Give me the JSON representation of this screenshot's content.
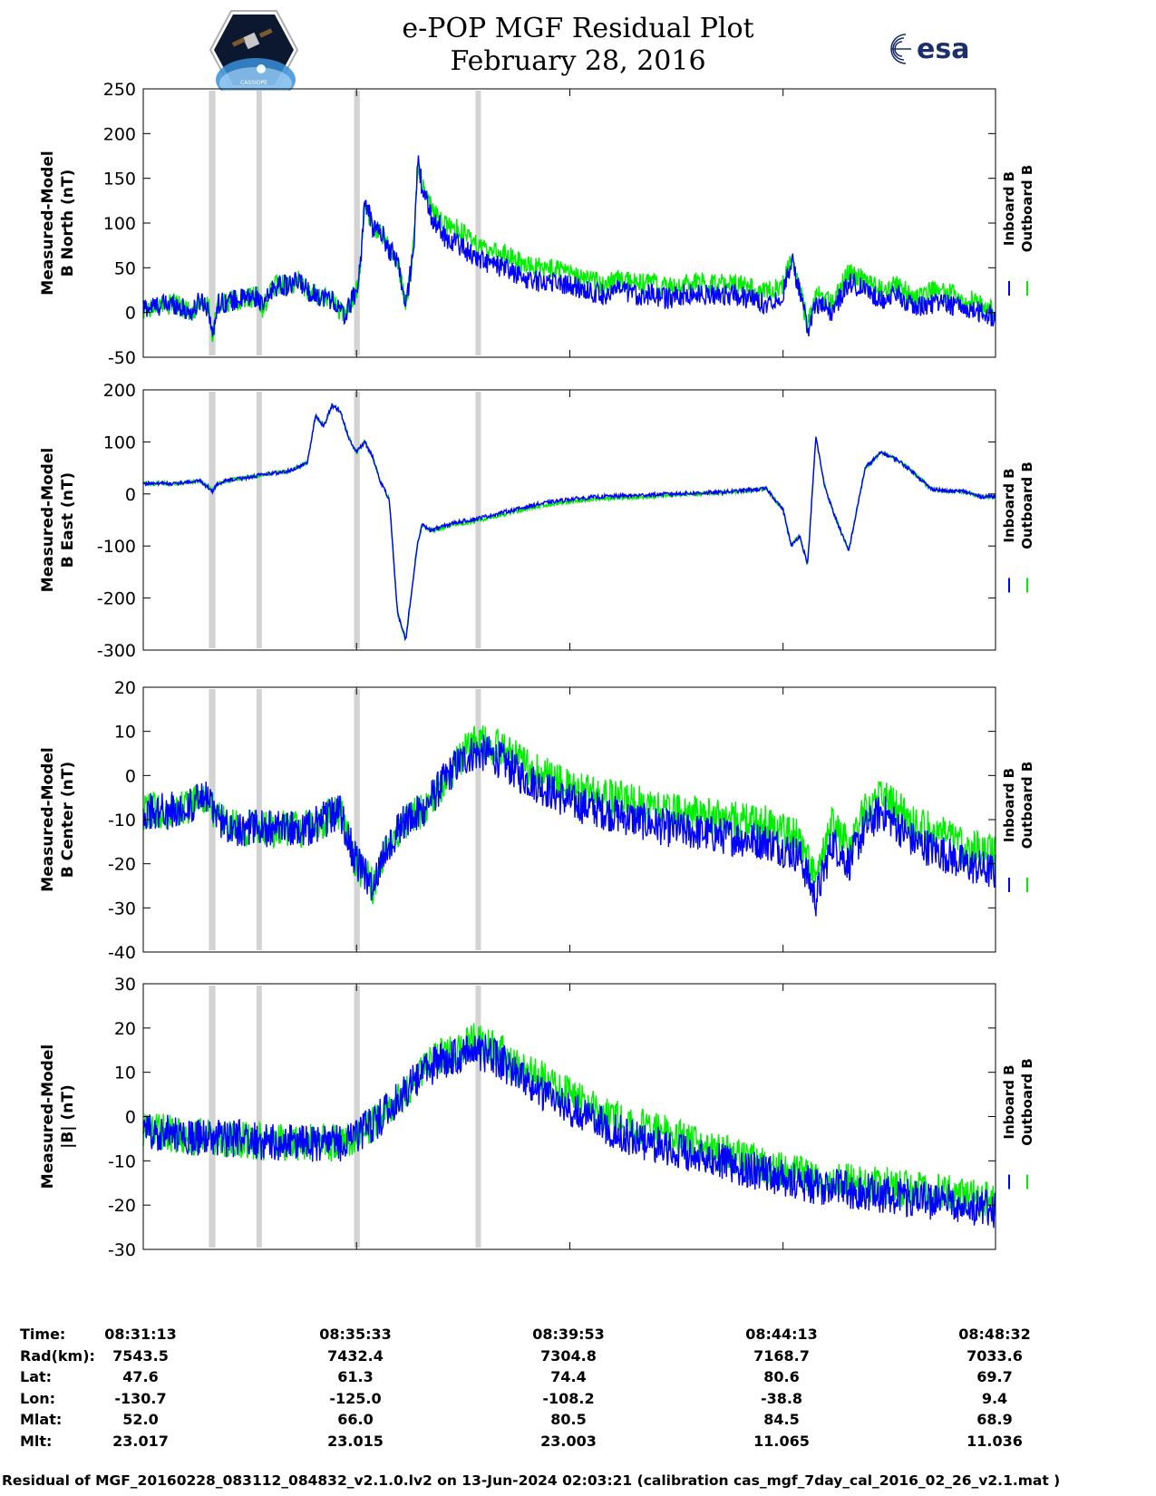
{
  "page": {
    "title": "e-POP MGF Residual Plot",
    "date": "February 28, 2016",
    "footer": "Residual of MGF_20160228_083112_084832_v2.1.0.lv2 on 13-Jun-2024 02:03:21 (calibration cas_mgf_7day_cal_2016_02_26_v2.1.mat )",
    "logos": [
      {
        "name": "cassiope-mission-logo",
        "text": "CASSIOPE"
      },
      {
        "name": "esa-logo",
        "text": "esa"
      }
    ]
  },
  "colors": {
    "inboard": "#0000ff",
    "outboard": "#00ee00",
    "gap_shading": "#d3d3d3",
    "axes": "#000000"
  },
  "orbit_table": {
    "labels": [
      "Time:",
      "Rad(km):",
      "Lat:",
      "Lon:",
      "Mlat:",
      "Mlt:"
    ],
    "columns": [
      [
        "08:31:13",
        "7543.5",
        "47.6",
        "-130.7",
        "52.0",
        "23.017"
      ],
      [
        "08:35:33",
        "7432.4",
        "61.3",
        "-125.0",
        "66.0",
        "23.015"
      ],
      [
        "08:39:53",
        "7304.8",
        "74.4",
        "-108.2",
        "80.5",
        "23.003"
      ],
      [
        "08:44:13",
        "7168.7",
        "80.6",
        "-38.8",
        "84.5",
        "11.065"
      ],
      [
        "08:48:32",
        "7033.6",
        "69.7",
        "9.4",
        "68.9",
        "11.036"
      ]
    ]
  },
  "chart_data": [
    {
      "type": "line",
      "ylabel": [
        "Measured-Model",
        "B North (nT)"
      ],
      "ylim": [
        -50,
        250
      ],
      "yticks": [
        -50,
        0,
        50,
        100,
        150,
        200,
        250
      ],
      "x_range_s": [
        0,
        1039
      ],
      "gaps_s": [
        [
          80,
          88
        ],
        [
          138,
          144
        ],
        [
          257,
          264
        ],
        [
          405,
          411
        ]
      ],
      "legend": [
        "Inboard B",
        "Outboard B"
      ],
      "series": [
        {
          "name": "Inboard B",
          "x": [
            0,
            20,
            40,
            50,
            60,
            70,
            80,
            85,
            90,
            100,
            120,
            140,
            145,
            160,
            180,
            190,
            200,
            210,
            230,
            245,
            250,
            262,
            265,
            270,
            275,
            280,
            290,
            300,
            310,
            320,
            325,
            330,
            335,
            340,
            350,
            355,
            360,
            365,
            370,
            380,
            400,
            420,
            440,
            460,
            480,
            500,
            520,
            540,
            560,
            580,
            600,
            620,
            640,
            660,
            680,
            700,
            720,
            740,
            760,
            780,
            790,
            800,
            810,
            820,
            840,
            860,
            880,
            900,
            920,
            940,
            960,
            980,
            1000,
            1020,
            1039
          ],
          "y": [
            5,
            8,
            10,
            3,
            0,
            15,
            5,
            -30,
            10,
            12,
            15,
            18,
            5,
            30,
            30,
            35,
            25,
            20,
            15,
            -5,
            5,
            30,
            60,
            125,
            110,
            95,
            90,
            70,
            60,
            5,
            40,
            80,
            170,
            140,
            110,
            100,
            100,
            90,
            80,
            80,
            65,
            55,
            50,
            40,
            35,
            35,
            30,
            25,
            20,
            25,
            20,
            20,
            15,
            20,
            20,
            20,
            20,
            15,
            10,
            20,
            60,
            25,
            -20,
            10,
            0,
            35,
            25,
            15,
            20,
            5,
            10,
            10,
            5,
            0,
            -5
          ]
        },
        {
          "name": "Outboard B",
          "x": [
            0,
            20,
            40,
            50,
            60,
            70,
            80,
            85,
            90,
            100,
            120,
            140,
            145,
            160,
            180,
            190,
            200,
            210,
            230,
            245,
            250,
            262,
            265,
            270,
            275,
            280,
            290,
            300,
            310,
            320,
            325,
            330,
            335,
            340,
            350,
            355,
            360,
            365,
            370,
            380,
            400,
            420,
            440,
            460,
            480,
            500,
            520,
            540,
            560,
            580,
            600,
            620,
            640,
            660,
            680,
            700,
            720,
            740,
            760,
            780,
            790,
            800,
            810,
            820,
            840,
            860,
            880,
            900,
            920,
            940,
            960,
            980,
            1000,
            1020,
            1039
          ],
          "y": [
            5,
            8,
            10,
            3,
            0,
            15,
            5,
            -30,
            10,
            12,
            15,
            18,
            5,
            30,
            30,
            35,
            25,
            20,
            15,
            -5,
            5,
            30,
            60,
            125,
            110,
            95,
            90,
            70,
            60,
            5,
            40,
            80,
            170,
            145,
            120,
            112,
            110,
            102,
            95,
            95,
            80,
            70,
            66,
            55,
            50,
            48,
            42,
            38,
            32,
            36,
            32,
            32,
            27,
            32,
            33,
            32,
            32,
            27,
            22,
            32,
            65,
            30,
            -15,
            20,
            10,
            45,
            35,
            25,
            30,
            15,
            25,
            22,
            15,
            10,
            0
          ]
        }
      ]
    },
    {
      "type": "line",
      "ylabel": [
        "Measured-Model",
        "B East (nT)"
      ],
      "ylim": [
        -300,
        200
      ],
      "yticks": [
        -300,
        -200,
        -100,
        0,
        100,
        200
      ],
      "x_range_s": [
        0,
        1039
      ],
      "gaps_s": [
        [
          80,
          88
        ],
        [
          138,
          144
        ],
        [
          257,
          264
        ],
        [
          405,
          411
        ]
      ],
      "legend": [
        "Inboard B",
        "Outboard B"
      ],
      "series": [
        {
          "name": "Inboard B",
          "x": [
            0,
            40,
            70,
            85,
            90,
            100,
            140,
            180,
            200,
            210,
            220,
            230,
            240,
            250,
            260,
            270,
            280,
            290,
            300,
            310,
            320,
            330,
            335,
            340,
            350,
            360,
            380,
            400,
            440,
            480,
            520,
            560,
            600,
            640,
            680,
            700,
            720,
            760,
            780,
            790,
            800,
            810,
            820,
            830,
            840,
            860,
            880,
            900,
            920,
            940,
            960,
            980,
            1000,
            1020,
            1039
          ],
          "y": [
            20,
            20,
            25,
            5,
            20,
            25,
            35,
            45,
            60,
            150,
            130,
            170,
            160,
            110,
            80,
            100,
            70,
            20,
            -10,
            -230,
            -280,
            -150,
            -90,
            -60,
            -70,
            -65,
            -55,
            -50,
            -35,
            -20,
            -10,
            -5,
            -3,
            0,
            2,
            3,
            5,
            10,
            -30,
            -100,
            -80,
            -135,
            110,
            20,
            -30,
            -110,
            50,
            80,
            65,
            40,
            10,
            5,
            5,
            -5,
            -5
          ]
        },
        {
          "name": "Outboard B",
          "x": [
            0,
            40,
            70,
            85,
            90,
            100,
            140,
            180,
            200,
            210,
            220,
            230,
            240,
            250,
            260,
            270,
            280,
            290,
            300,
            310,
            320,
            330,
            335,
            340,
            350,
            360,
            380,
            400,
            440,
            480,
            520,
            560,
            600,
            640,
            680,
            700,
            720,
            760,
            780,
            790,
            800,
            810,
            820,
            830,
            840,
            860,
            880,
            900,
            920,
            940,
            960,
            980,
            1000,
            1020,
            1039
          ],
          "y": [
            20,
            20,
            25,
            5,
            20,
            25,
            35,
            45,
            60,
            150,
            130,
            170,
            160,
            110,
            80,
            100,
            70,
            20,
            -10,
            -230,
            -280,
            -150,
            -90,
            -60,
            -70,
            -68,
            -58,
            -54,
            -39,
            -24,
            -14,
            -9,
            -7,
            -3,
            0,
            2,
            4,
            10,
            -30,
            -100,
            -80,
            -135,
            110,
            20,
            -30,
            -110,
            50,
            80,
            65,
            40,
            10,
            5,
            5,
            -5,
            -5
          ]
        }
      ]
    },
    {
      "type": "line",
      "ylabel": [
        "Measured-Model",
        "B Center (nT)"
      ],
      "ylim": [
        -40,
        20
      ],
      "yticks": [
        -40,
        -30,
        -20,
        -10,
        0,
        10,
        20
      ],
      "x_range_s": [
        0,
        1039
      ],
      "gaps_s": [
        [
          80,
          88
        ],
        [
          138,
          144
        ],
        [
          257,
          264
        ],
        [
          405,
          411
        ]
      ],
      "legend": [
        "Inboard B",
        "Outboard B"
      ],
      "series": [
        {
          "name": "Inboard B",
          "x": [
            0,
            40,
            80,
            90,
            120,
            160,
            200,
            240,
            260,
            280,
            300,
            320,
            340,
            360,
            380,
            400,
            420,
            440,
            460,
            480,
            520,
            560,
            600,
            640,
            680,
            720,
            760,
            800,
            820,
            840,
            860,
            880,
            900,
            940,
            980,
            1000,
            1039
          ],
          "y": [
            -8,
            -8,
            -5,
            -10,
            -12,
            -12,
            -12,
            -8,
            -20,
            -25,
            -15,
            -10,
            -8,
            -3,
            2,
            5,
            5,
            3,
            0,
            -2,
            -6,
            -8,
            -10,
            -12,
            -13,
            -14,
            -15,
            -18,
            -28,
            -15,
            -20,
            -12,
            -8,
            -15,
            -18,
            -20,
            -22
          ]
        },
        {
          "name": "Outboard B",
          "x": [
            0,
            40,
            80,
            90,
            120,
            160,
            200,
            240,
            260,
            280,
            300,
            320,
            340,
            360,
            380,
            400,
            420,
            440,
            460,
            480,
            520,
            560,
            600,
            640,
            680,
            720,
            760,
            800,
            820,
            840,
            860,
            880,
            900,
            940,
            980,
            1000,
            1039
          ],
          "y": [
            -8,
            -8,
            -5,
            -10,
            -12,
            -12,
            -12,
            -8,
            -20,
            -25,
            -15,
            -10,
            -8,
            -3,
            2,
            7,
            7,
            6,
            3,
            1,
            -3,
            -5,
            -6,
            -8,
            -9,
            -10,
            -11,
            -14,
            -24,
            -11,
            -16,
            -8,
            -4,
            -11,
            -14,
            -16,
            -18
          ]
        }
      ]
    },
    {
      "type": "line",
      "ylabel": [
        "Measured-Model",
        "|B| (nT)"
      ],
      "ylim": [
        -30,
        30
      ],
      "yticks": [
        -30,
        -20,
        -10,
        0,
        10,
        20,
        30
      ],
      "x_range_s": [
        0,
        1039
      ],
      "gaps_s": [
        [
          80,
          88
        ],
        [
          138,
          144
        ],
        [
          257,
          264
        ],
        [
          405,
          411
        ]
      ],
      "legend": [
        "Inboard B",
        "Outboard B"
      ],
      "series": [
        {
          "name": "Inboard B",
          "x": [
            0,
            40,
            80,
            120,
            160,
            200,
            240,
            260,
            280,
            300,
            320,
            340,
            360,
            380,
            400,
            420,
            440,
            460,
            480,
            500,
            520,
            560,
            600,
            640,
            680,
            720,
            760,
            800,
            840,
            880,
            920,
            960,
            1000,
            1039
          ],
          "y": [
            -3,
            -4,
            -5,
            -5,
            -6,
            -6,
            -6,
            -4,
            -2,
            2,
            6,
            10,
            12,
            14,
            15,
            14,
            12,
            8,
            6,
            4,
            2,
            -2,
            -5,
            -7,
            -9,
            -11,
            -13,
            -15,
            -16,
            -17,
            -18,
            -19,
            -20,
            -21
          ]
        },
        {
          "name": "Outboard B",
          "x": [
            0,
            40,
            80,
            120,
            160,
            200,
            240,
            260,
            280,
            300,
            320,
            340,
            360,
            380,
            400,
            420,
            440,
            460,
            480,
            500,
            520,
            560,
            600,
            640,
            680,
            720,
            760,
            800,
            840,
            880,
            920,
            960,
            1000,
            1039
          ],
          "y": [
            -3,
            -4,
            -5,
            -5,
            -6,
            -6,
            -6,
            -4,
            -2,
            2,
            6,
            10,
            13,
            15,
            17,
            16,
            14,
            10,
            9,
            7,
            5,
            1,
            -2,
            -4,
            -7,
            -9,
            -11,
            -13,
            -14,
            -15,
            -16,
            -17,
            -18,
            -19
          ]
        }
      ]
    }
  ],
  "x_axis": {
    "tick_labels": [
      "08:31:13",
      "08:35:33",
      "08:39:53",
      "08:44:13",
      "08:48:32"
    ],
    "ticks_s": [
      0,
      260,
      520,
      780,
      1039
    ]
  }
}
